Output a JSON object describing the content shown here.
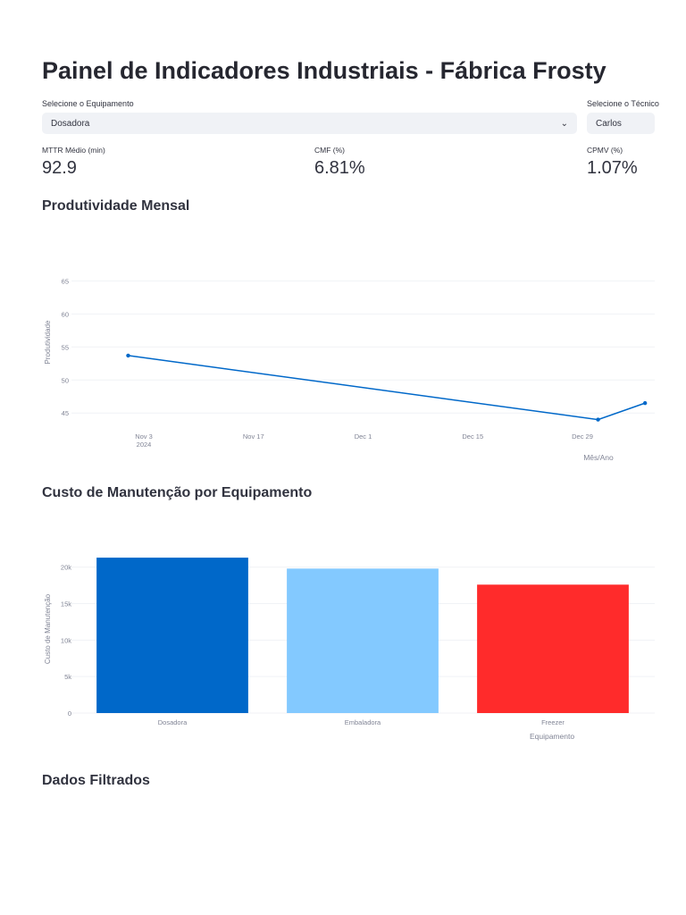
{
  "header": {
    "title": "Painel de Indicadores Industriais - Fábrica Frosty"
  },
  "filters": {
    "equipment_label": "Selecione o Equipamento",
    "equipment_value": "Dosadora",
    "technician_label": "Selecione o Técnico",
    "technician_value": "Carlos"
  },
  "metrics": [
    {
      "label": "MTTR Médio (min)",
      "value": "92.9"
    },
    {
      "label": "CMF (%)",
      "value": "6.81%"
    },
    {
      "label": "CPMV (%)",
      "value": "1.07%"
    }
  ],
  "sections": {
    "productivity": "Produtividade Mensal",
    "maintenance_cost": "Custo de Manutenção por Equipamento",
    "filtered_data": "Dados Filtrados"
  },
  "colors": {
    "line": "#0068c9",
    "bar_dosadora": "#0068c9",
    "bar_embaladora": "#83c9ff",
    "bar_freezer": "#ff2b2b",
    "grid": "#f0f2f6",
    "axis_text": "#808495"
  },
  "chart_data": [
    {
      "type": "line",
      "x": [
        "2024-11-01",
        "2024-12-31",
        "2025-01-06"
      ],
      "y": [
        53.7,
        44,
        46.5
      ],
      "ylabel": "Produtividade",
      "xlabel": "Mês/Ano",
      "ylim": [
        43,
        66
      ],
      "y_ticks": [
        45,
        50,
        55,
        60,
        65
      ],
      "x_ticks": [
        "Nov 3",
        "Nov 17",
        "Dec 1",
        "Dec 15",
        "Dec 29"
      ],
      "x_tick_sub": "2024",
      "grid": true
    },
    {
      "type": "bar",
      "categories": [
        "Dosadora",
        "Embaladora",
        "Freezer"
      ],
      "values": [
        21300,
        19800,
        17600
      ],
      "ylabel": "Custo de Manutenção",
      "xlabel": "Equipamento",
      "ylim": [
        0,
        21800
      ],
      "y_ticks": [
        "0",
        "5k",
        "10k",
        "15k",
        "20k"
      ],
      "grid": true
    }
  ]
}
